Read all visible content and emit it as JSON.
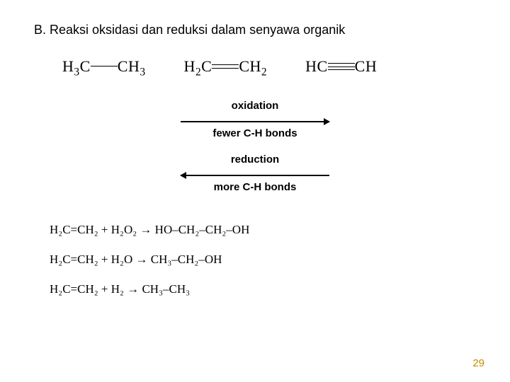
{
  "title": "B. Reaksi oksidasi dan reduksi dalam senyawa organik",
  "molecules": {
    "ethane_left": "H",
    "ethane_left_sub": "3",
    "ethane_c": "C",
    "ethane_right": "CH",
    "ethane_right_sub": "3",
    "ethene_left": "H",
    "ethene_left_sub": "2",
    "ethene_c": "C",
    "ethene_right": "CH",
    "ethene_right_sub": "2",
    "ethyne_left": "HC",
    "ethyne_right": "CH"
  },
  "oxidation": {
    "label": "oxidation",
    "sub": "fewer C-H bonds"
  },
  "reduction": {
    "label": "reduction",
    "sub": "more C-H bonds"
  },
  "reactions": {
    "r1": "H₂C=CH₂ + H₂O₂ → HO–CH₂–CH₂–OH",
    "r2": "H₂C=CH₂ + H₂O → CH₃–CH₂–OH",
    "r3": "H₂C=CH₂ + H₂ → CH₃–CH₃"
  },
  "page_number": "29"
}
